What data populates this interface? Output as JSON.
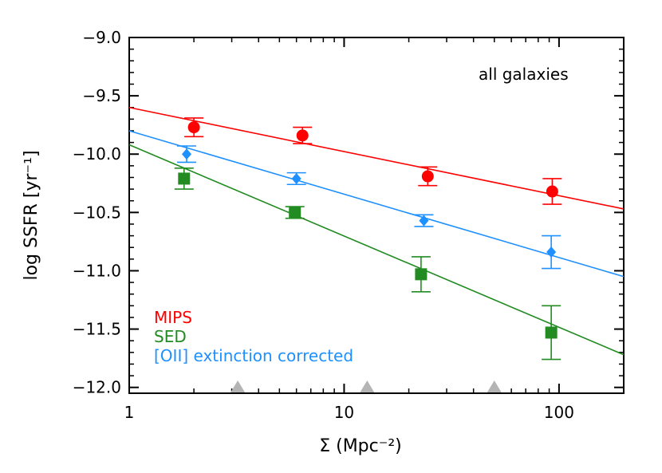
{
  "chart_data": {
    "type": "scatter",
    "title": "",
    "annotation": "all galaxies",
    "xlabel": "Σ (Mpc⁻²)",
    "ylabel": "log SSFR [yr⁻¹]",
    "x_scale": "log",
    "xlim": [
      1,
      200
    ],
    "ylim": [
      -12.05,
      -9.0
    ],
    "x_ticks": [
      1,
      10,
      100
    ],
    "x_tick_labels": [
      "1",
      "10",
      "100"
    ],
    "y_ticks": [
      -12.0,
      -11.5,
      -11.0,
      -10.5,
      -10.0,
      -9.5,
      -9.0
    ],
    "y_tick_labels": [
      "−12.0",
      "−11.5",
      "−11.0",
      "−10.5",
      "−10.0",
      "−9.5",
      "−9.0"
    ],
    "grid": false,
    "legend_placement": "bottom-left",
    "series": [
      {
        "name": "MIPS",
        "color": "#ff0000",
        "marker": "circle",
        "x": [
          2.0,
          6.4,
          24.5,
          93.0
        ],
        "y": [
          -9.77,
          -9.84,
          -10.19,
          -10.32
        ],
        "err": [
          0.08,
          0.07,
          0.08,
          0.11
        ],
        "fit": {
          "x": [
            1,
            200
          ],
          "y": [
            -9.6,
            -10.47
          ]
        }
      },
      {
        "name": "[OII] extinction corrected",
        "color": "#1e90ff",
        "marker": "diamond",
        "x": [
          1.85,
          6.0,
          23.5,
          92.0
        ],
        "y": [
          -10.0,
          -10.21,
          -10.57,
          -10.84
        ],
        "err": [
          0.07,
          0.05,
          0.05,
          0.14
        ],
        "fit": {
          "x": [
            1,
            200
          ],
          "y": [
            -9.8,
            -11.05
          ]
        }
      },
      {
        "name": "SED",
        "color": "#228b22",
        "marker": "square",
        "x": [
          1.8,
          5.9,
          22.8,
          92.0
        ],
        "y": [
          -10.21,
          -10.5,
          -11.03,
          -11.53
        ],
        "err": [
          0.09,
          0.05,
          0.15,
          0.23
        ],
        "fit": {
          "x": [
            1,
            200
          ],
          "y": [
            -9.92,
            -11.72
          ]
        }
      }
    ],
    "arrows": {
      "color": "#b4b4b4",
      "x": [
        3.2,
        12.8,
        50.0
      ]
    }
  }
}
